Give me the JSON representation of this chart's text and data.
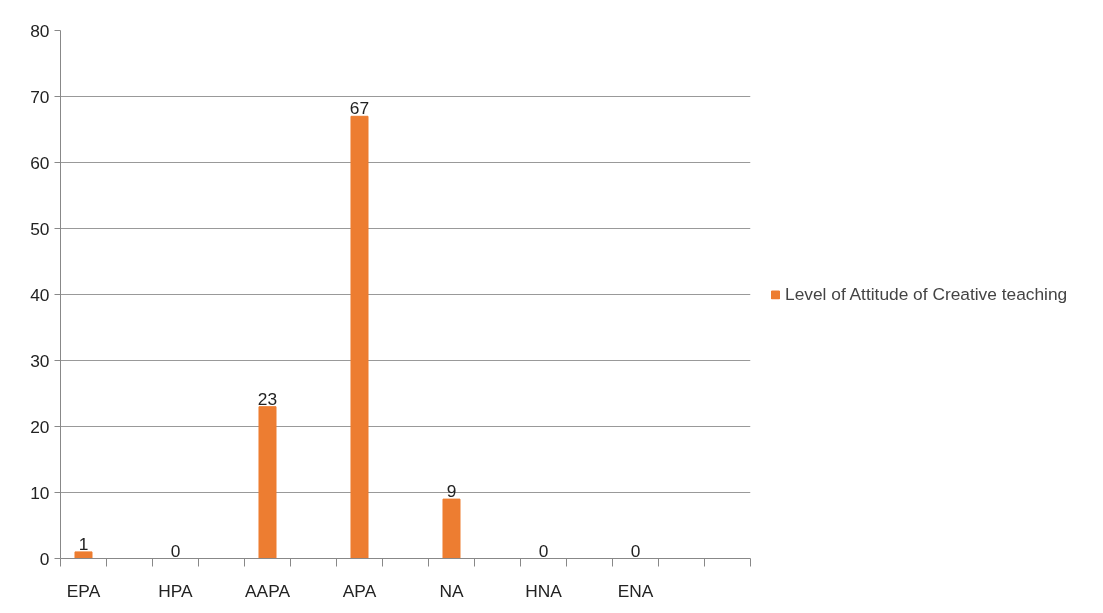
{
  "chart_data": {
    "type": "bar",
    "categories": [
      "EPA",
      null,
      "HPA",
      null,
      "AAPA",
      null,
      "APA",
      null,
      "NA",
      null,
      "HNA",
      null,
      "ENA",
      null,
      null
    ],
    "series": [
      {
        "name": "Level of Attitude of Creative teaching",
        "color": "#ed7d31",
        "values": [
          1,
          null,
          0,
          null,
          23,
          null,
          67,
          null,
          9,
          null,
          0,
          null,
          0,
          null,
          null
        ]
      }
    ],
    "ylim": [
      0,
      80
    ],
    "yticks": [
      0,
      10,
      20,
      30,
      40,
      50,
      60,
      70,
      80
    ],
    "grid": "y",
    "legend": "right",
    "data_labels": true
  }
}
